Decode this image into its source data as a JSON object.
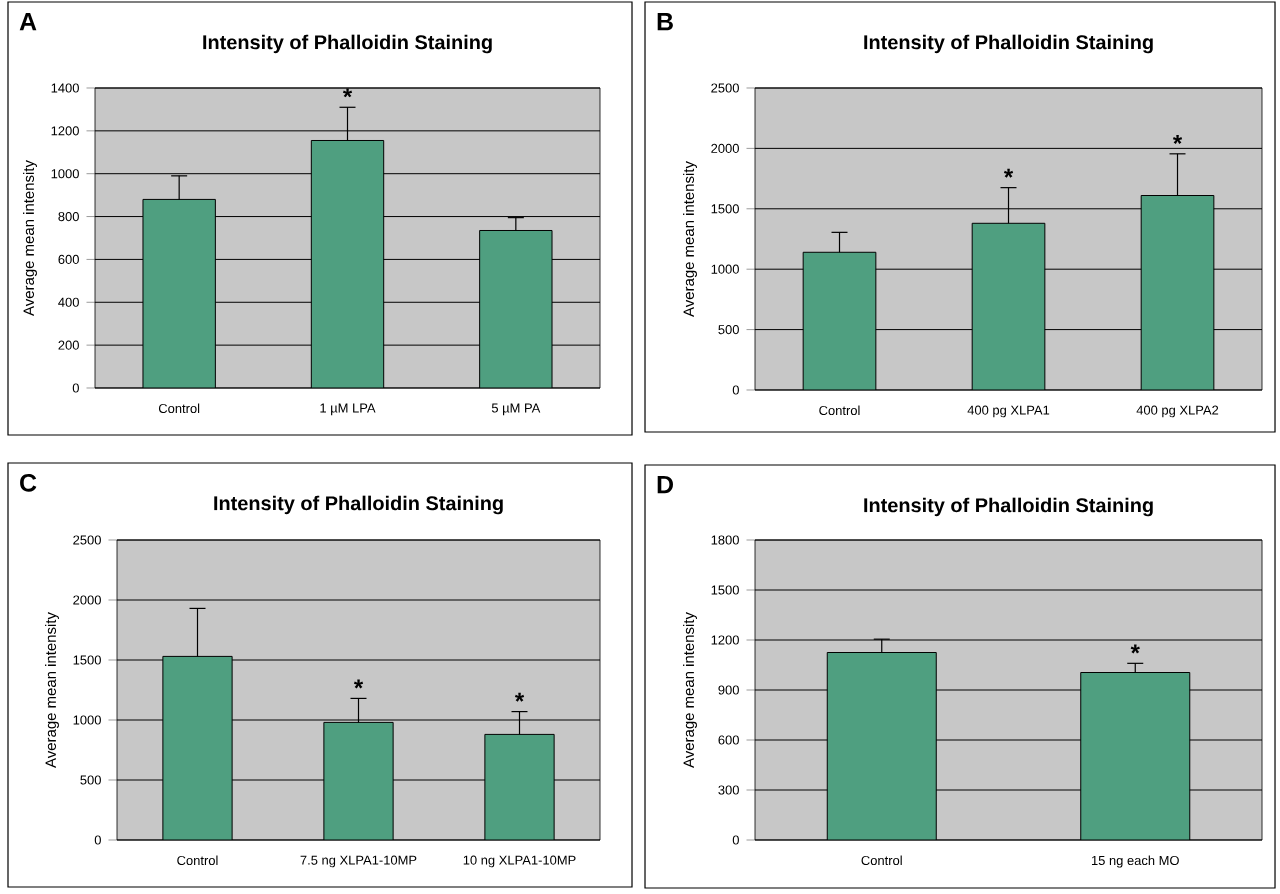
{
  "chart_data": [
    {
      "type": "bar",
      "title": "Intensity of Phalloidin Staining",
      "ylabel": "Average mean intensity",
      "categories": [
        "Control",
        "1 µM LPA",
        "5 µM PA"
      ],
      "values": [
        880,
        1155,
        735
      ],
      "errors": [
        [
          880,
          990
        ],
        [
          1155,
          1310
        ],
        [
          735,
          795
        ]
      ],
      "color": "#4f9f80",
      "ylim": [
        0,
        1400
      ],
      "yticks": [
        0,
        200,
        400,
        600,
        800,
        1000,
        1200,
        1400
      ],
      "grid": "y",
      "annotations": [
        "A",
        {
          "text": "*",
          "x": "1 µM LPA",
          "y": 1310
        }
      ]
    },
    {
      "type": "bar",
      "title": "Intensity of Phalloidin Staining",
      "ylabel": "Average mean intensity",
      "categories": [
        "Control",
        "400 pg XLPA1",
        "400 pg XLPA2"
      ],
      "values": [
        1140,
        1380,
        1610
      ],
      "errors": [
        [
          1140,
          1305
        ],
        [
          1380,
          1675
        ],
        [
          1610,
          1955
        ]
      ],
      "color": "#4f9f80",
      "ylim": [
        0,
        2500
      ],
      "yticks": [
        0,
        500,
        1000,
        1500,
        2000,
        2500
      ],
      "grid": "y",
      "annotations": [
        "B",
        {
          "text": "*",
          "x": "400 pg XLPA1",
          "y": 1675
        },
        {
          "text": "*",
          "x": "400 pg XLPA2",
          "y": 1955
        }
      ]
    },
    {
      "type": "bar",
      "title": "Intensity of Phalloidin Staining",
      "ylabel": "Average mean intensity",
      "categories": [
        "Control",
        "7.5 ng XLPA1-10MP",
        "10 ng XLPA1-10MP"
      ],
      "values": [
        1530,
        980,
        880
      ],
      "errors": [
        [
          1530,
          1930
        ],
        [
          980,
          1180
        ],
        [
          880,
          1070
        ]
      ],
      "color": "#4f9f80",
      "ylim": [
        0,
        2500
      ],
      "yticks": [
        0,
        500,
        1000,
        1500,
        2000,
        2500
      ],
      "grid": "y",
      "annotations": [
        "C",
        {
          "text": "*",
          "x": "7.5 ng XLPA1-10MP",
          "y": 1180
        },
        {
          "text": "*",
          "x": "10 ng XLPA1-10MP",
          "y": 1070
        }
      ]
    },
    {
      "type": "bar",
      "title": "Intensity of Phalloidin Staining",
      "ylabel": "Average mean intensity",
      "categories": [
        "Control",
        "15 ng each MO"
      ],
      "values": [
        1125,
        1005
      ],
      "errors": [
        [
          1125,
          1205
        ],
        [
          1005,
          1060
        ]
      ],
      "color": "#4f9f80",
      "ylim": [
        0,
        1800
      ],
      "yticks": [
        0,
        300,
        600,
        900,
        1200,
        1500,
        1800
      ],
      "grid": "y",
      "annotations": [
        "D",
        {
          "text": "*",
          "x": "15 ng each MO",
          "y": 1060
        }
      ]
    }
  ]
}
